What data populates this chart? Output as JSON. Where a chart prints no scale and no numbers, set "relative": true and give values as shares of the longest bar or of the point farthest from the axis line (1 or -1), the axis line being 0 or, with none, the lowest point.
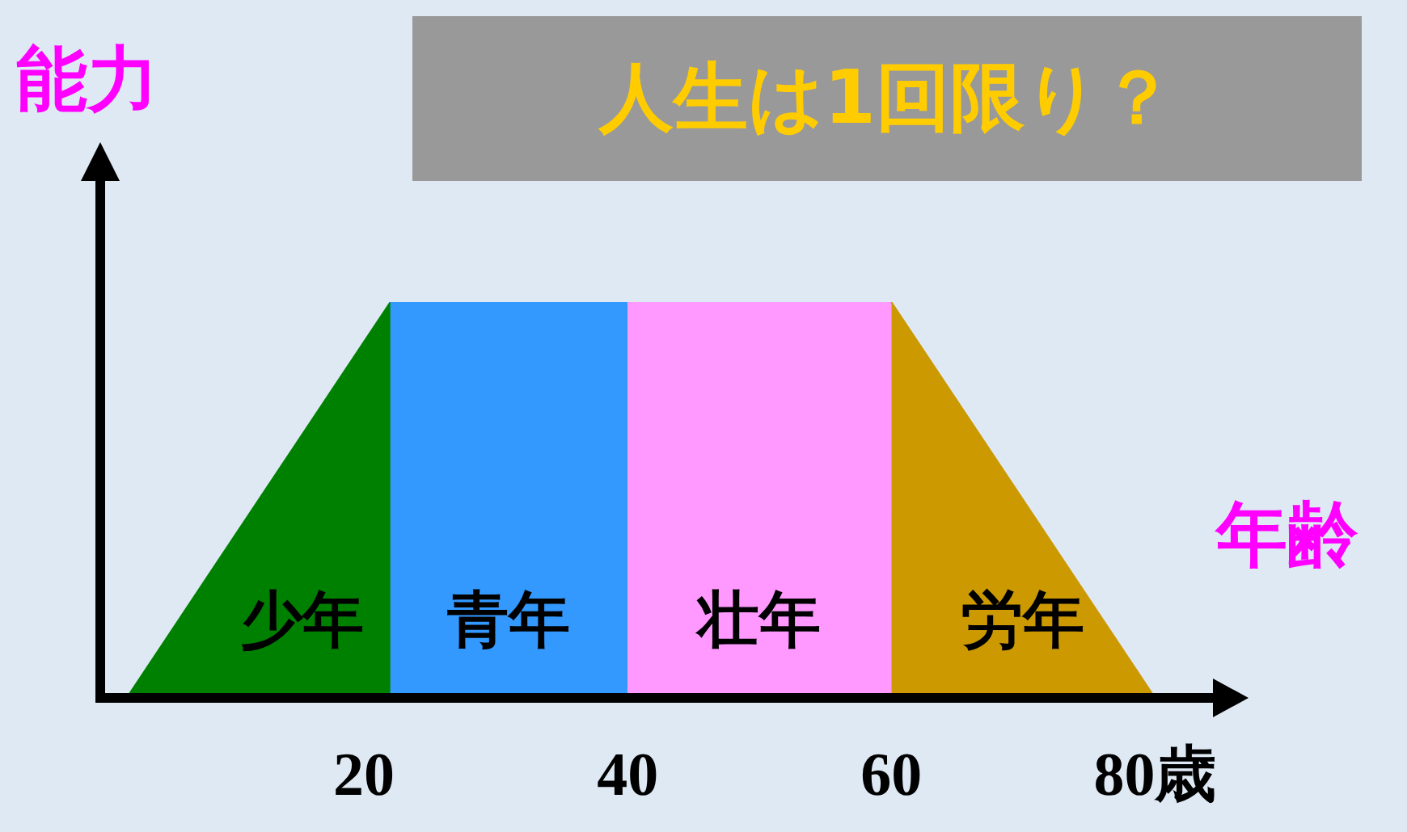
{
  "chart_data": {
    "type": "area",
    "title": "人生は1回限り？",
    "xlabel": "年齢",
    "ylabel": "能力",
    "relative": true,
    "xlim": [
      0,
      85
    ],
    "xticks": [
      20,
      40,
      60,
      {
        "value": 80,
        "label": "80歳"
      }
    ],
    "legend": false,
    "series": [
      {
        "name": "少年",
        "color": "#008000",
        "x": [
          2,
          22,
          22
        ],
        "values": [
          0,
          1,
          0
        ]
      },
      {
        "name": "青年",
        "color": "#3399ff",
        "x": [
          22,
          40
        ],
        "values": [
          1,
          1
        ]
      },
      {
        "name": "壮年",
        "color": "#ff99ff",
        "x": [
          40,
          60
        ],
        "values": [
          1,
          1
        ]
      },
      {
        "name": "労年",
        "color": "#cc9900",
        "x": [
          60,
          80
        ],
        "values": [
          1,
          0
        ]
      }
    ]
  }
}
